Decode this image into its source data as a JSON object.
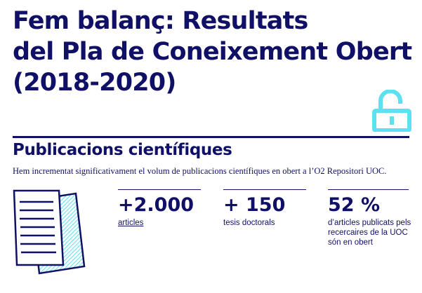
{
  "header": {
    "title_lines": [
      "Fem balanç: Resultats",
      "del Pla de Coneixement Obert",
      "(2018-2020)"
    ]
  },
  "icons": {
    "lock": "open-padlock-icon",
    "document": "document-pages-icon"
  },
  "colors": {
    "navy": "#101066",
    "cyan": "#5ce1f0"
  },
  "section": {
    "title": "Publicacions científiques",
    "intro": "Hem incrementat significativament el volum de publicacions científiques en obert a l’O2 Repositori UOC."
  },
  "stats": [
    {
      "value": "+2.000",
      "label": "articles"
    },
    {
      "value": "+ 150",
      "label": "tesis doctorals"
    },
    {
      "value": "52 %",
      "label": "d’articles publicats pels recercaires de la UOC són en obert"
    }
  ]
}
